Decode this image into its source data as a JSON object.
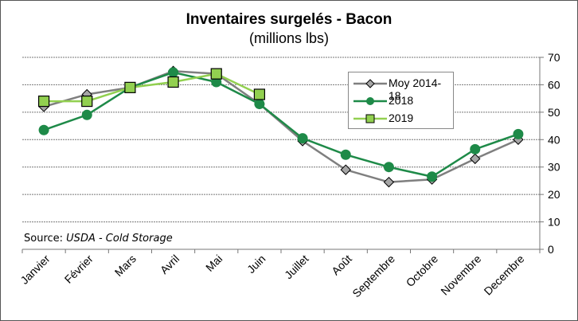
{
  "chart_data": {
    "type": "line",
    "title": "Inventaires surgelés - Bacon",
    "subtitle": "(millions lbs)",
    "source_prefix": "Source: ",
    "source_italic": "USDA - Cold Storage",
    "xlabel": "",
    "ylabel": "",
    "categories": [
      "Janvier",
      "Février",
      "Mars",
      "Avril",
      "Mai",
      "Juin",
      "Juillet",
      "Août",
      "Septembre",
      "Octobre",
      "Novembre",
      "Decembre"
    ],
    "yaxis": {
      "position": "right",
      "ylim": [
        0,
        70
      ],
      "ticks": [
        0,
        10,
        20,
        30,
        40,
        50,
        60,
        70
      ]
    },
    "grid": true,
    "legend_placement": "top-center-right",
    "series": [
      {
        "name": "Moy 2014-18",
        "color": "#7f7f7f",
        "marker": "diamond",
        "marker_fill": "#a6a6a6",
        "values": [
          52,
          56.5,
          59,
          65,
          64,
          53,
          39.5,
          29,
          24.5,
          25.5,
          33,
          40
        ]
      },
      {
        "name": "2018",
        "color": "#1e8a48",
        "marker": "circle",
        "marker_fill": "#1e8a48",
        "values": [
          43.5,
          49,
          59,
          64.5,
          61,
          53,
          40.5,
          34.5,
          30,
          26.5,
          36.5,
          42
        ]
      },
      {
        "name": "2019",
        "color": "#92d050",
        "marker": "square",
        "marker_fill": "#92d050",
        "values": [
          54,
          54,
          59,
          61,
          64,
          56.5,
          null,
          null,
          null,
          null,
          null,
          null
        ]
      }
    ]
  }
}
